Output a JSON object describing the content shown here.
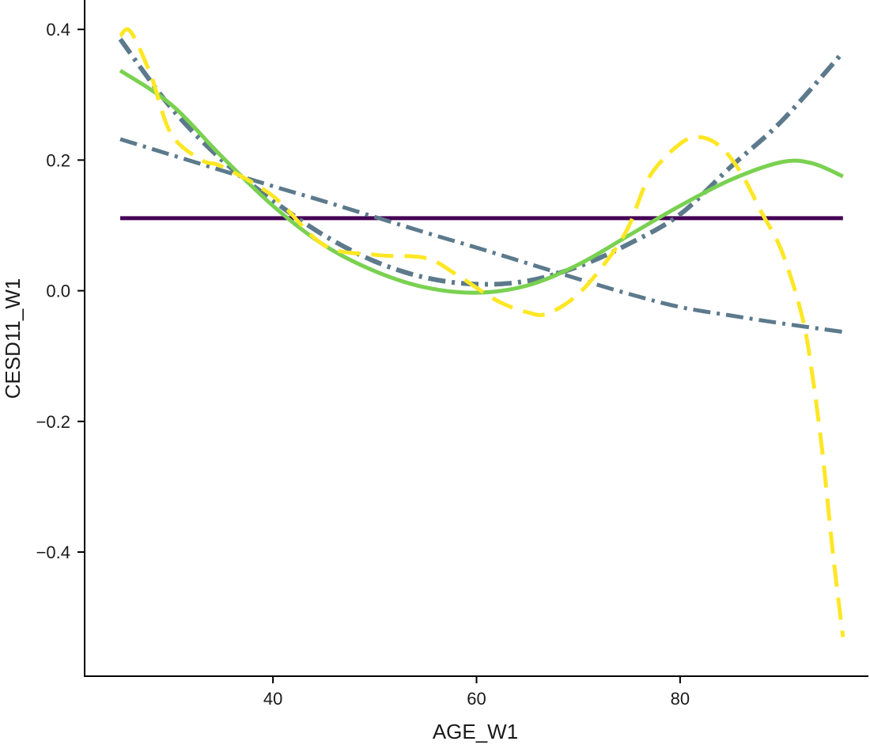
{
  "chart_data": {
    "type": "line",
    "xlabel": "AGE_W1",
    "ylabel": "CESD11_W1",
    "xlim": [
      21.5,
      98.5
    ],
    "ylim": [
      -0.59,
      0.445
    ],
    "x_ticks": [
      40,
      60,
      80
    ],
    "x_tick_labels": [
      "40",
      "60",
      "80"
    ],
    "y_ticks": [
      0.4,
      0.2,
      0.0,
      -0.2,
      -0.4
    ],
    "y_tick_labels": [
      "0.4",
      "0.2",
      "0.0",
      "−0.2",
      "−0.4"
    ],
    "grid": false,
    "legend": "none",
    "series": [
      {
        "style": "solid-flat",
        "color": "#440154",
        "x": [
          25,
          96
        ],
        "y": [
          0.111,
          0.111
        ]
      },
      {
        "style": "dash-dot-linear",
        "color": "#5c7a8c",
        "x": [
          25,
          30,
          35,
          40,
          45,
          50,
          55,
          60,
          65,
          70,
          75,
          80,
          85,
          90,
          96
        ],
        "y": [
          0.232,
          0.208,
          0.184,
          0.16,
          0.137,
          0.113,
          0.089,
          0.066,
          0.042,
          0.018,
          -0.005,
          -0.025,
          -0.038,
          -0.05,
          -0.063
        ]
      },
      {
        "style": "dash-dot-cubic",
        "color": "#5c7a8c",
        "x": [
          25,
          30,
          35,
          40,
          45,
          50,
          55,
          60,
          65,
          70,
          75,
          80,
          85,
          90,
          96
        ],
        "y": [
          0.385,
          0.28,
          0.2,
          0.138,
          0.085,
          0.045,
          0.02,
          0.01,
          0.015,
          0.037,
          0.072,
          0.117,
          0.19,
          0.26,
          0.365
        ]
      },
      {
        "style": "solid-smooth",
        "color": "#7ad151",
        "x": [
          25,
          30,
          35,
          40,
          45,
          50,
          55,
          60,
          65,
          70,
          75,
          80,
          85,
          90,
          93,
          96
        ],
        "y": [
          0.337,
          0.285,
          0.205,
          0.13,
          0.07,
          0.03,
          0.005,
          -0.003,
          0.008,
          0.04,
          0.085,
          0.13,
          0.17,
          0.197,
          0.195,
          0.175
        ]
      },
      {
        "style": "dashed-wiggly",
        "color": "#fde725",
        "x": [
          25,
          26,
          28,
          30,
          33,
          35,
          40,
          45,
          50,
          55,
          58,
          62,
          65,
          67,
          70,
          73,
          75,
          77,
          80,
          82,
          84,
          86,
          88,
          90,
          92,
          93,
          94,
          95,
          96
        ],
        "y": [
          0.39,
          0.397,
          0.33,
          0.24,
          0.2,
          0.19,
          0.145,
          0.07,
          0.055,
          0.05,
          0.025,
          -0.015,
          -0.033,
          -0.035,
          -0.005,
          0.05,
          0.1,
          0.175,
          0.225,
          0.235,
          0.22,
          0.18,
          0.12,
          0.06,
          -0.04,
          -0.13,
          -0.25,
          -0.4,
          -0.53
        ]
      }
    ]
  }
}
